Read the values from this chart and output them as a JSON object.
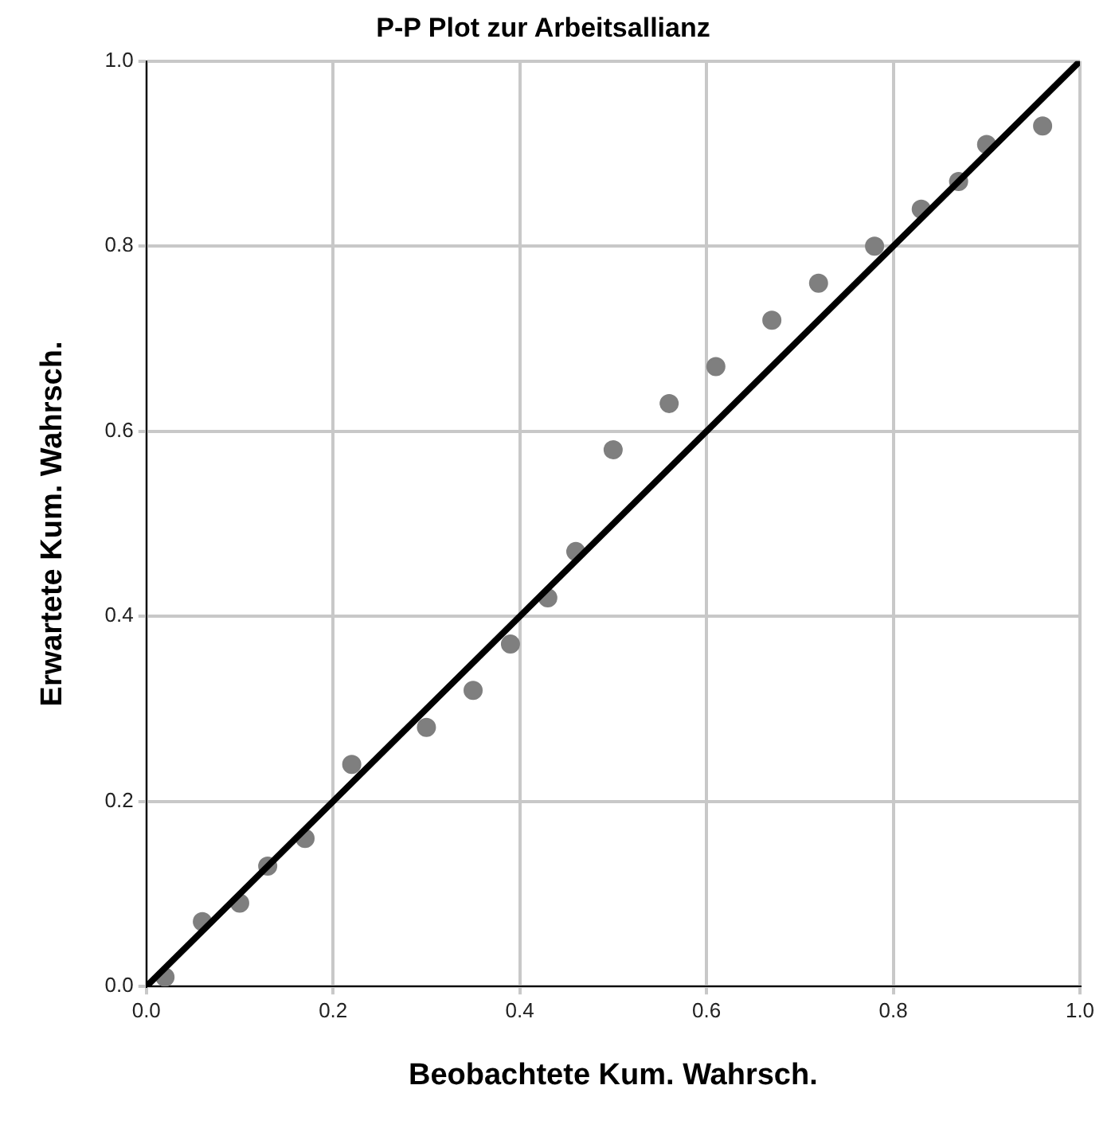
{
  "chart_data": {
    "type": "scatter",
    "title": "P-P Plot zur Arbeitsallianz",
    "xlabel": "Beobachtete Kum. Wahrsch.",
    "ylabel": "Erwartete Kum. Wahrsch.",
    "xlim": [
      0,
      1
    ],
    "ylim": [
      0,
      1
    ],
    "xticks": [
      {
        "value": 0,
        "label": "0.0"
      },
      {
        "value": 0.2,
        "label": "0.2"
      },
      {
        "value": 0.4,
        "label": "0.4"
      },
      {
        "value": 0.6,
        "label": "0.6"
      },
      {
        "value": 0.8,
        "label": "0.8"
      },
      {
        "value": 1,
        "label": "1.0"
      }
    ],
    "yticks": [
      {
        "value": 0,
        "label": "0.0"
      },
      {
        "value": 0.2,
        "label": "0.2"
      },
      {
        "value": 0.4,
        "label": "0.4"
      },
      {
        "value": 0.6,
        "label": "0.6"
      },
      {
        "value": 0.8,
        "label": "0.8"
      },
      {
        "value": 1,
        "label": "1.0"
      }
    ],
    "grid": true,
    "legend": false,
    "marker": "circle",
    "series": [
      {
        "type": "line",
        "color": "#000000",
        "marker": "none",
        "x": [
          0,
          1
        ],
        "values": [
          0,
          1
        ]
      },
      {
        "type": "scatter",
        "color": "#7f7f7f",
        "x": [
          0.02,
          0.06,
          0.1,
          0.13,
          0.17,
          0.22,
          0.3,
          0.35,
          0.39,
          0.43,
          0.46,
          0.5,
          0.56,
          0.61,
          0.67,
          0.72,
          0.78,
          0.83,
          0.87,
          0.9,
          0.96
        ],
        "values": [
          0.01,
          0.07,
          0.09,
          0.13,
          0.16,
          0.24,
          0.28,
          0.32,
          0.37,
          0.42,
          0.47,
          0.58,
          0.63,
          0.67,
          0.72,
          0.76,
          0.8,
          0.84,
          0.87,
          0.91,
          0.93
        ]
      }
    ]
  }
}
